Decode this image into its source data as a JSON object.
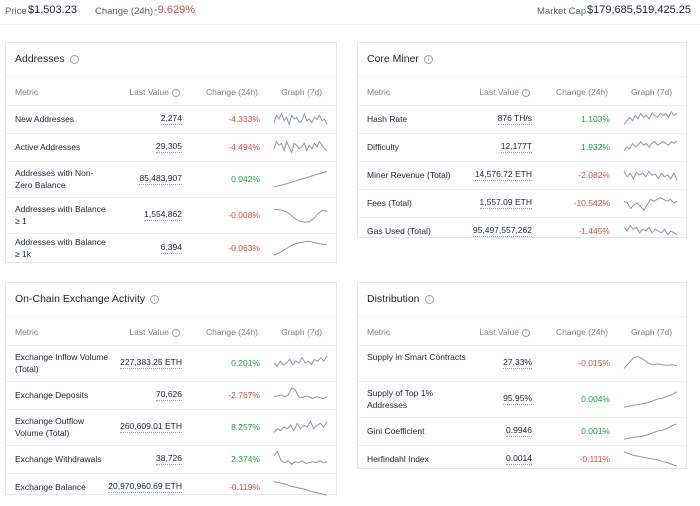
{
  "topbar": {
    "price_label": "Price",
    "price_value": "$1,503.23",
    "change_label": "Change (24h)",
    "change_value": "-9.629%",
    "mcap_label": "Market Cap",
    "mcap_value": "$179,685,519,425.25"
  },
  "columns": {
    "metric": "Metric",
    "last_value": "Last Value",
    "change": "Change (24h)",
    "graph": "Graph (7d)"
  },
  "icons": {
    "info": "info-icon"
  },
  "addresses": {
    "title": "Addresses",
    "rows": [
      {
        "metric": "New Addresses",
        "value": "2,274",
        "change": "-4.333%",
        "dir": "neg",
        "spark": [
          0.7,
          0.3,
          0.5,
          0.2,
          0.6,
          0.4,
          0.8,
          0.3,
          0.5,
          0.4,
          0.7,
          0.6,
          0.2,
          0.6,
          0.5,
          0.7,
          0.4,
          0.5,
          0.3,
          0.6,
          0.5,
          0.8
        ]
      },
      {
        "metric": "Active Addresses",
        "value": "29,305",
        "change": "-4.494%",
        "dir": "neg",
        "spark": [
          0.6,
          0.2,
          0.4,
          0.3,
          0.7,
          0.2,
          0.5,
          0.8,
          0.3,
          0.4,
          0.6,
          0.5,
          0.3,
          0.7,
          0.4,
          0.6,
          0.3,
          0.5,
          0.2,
          0.4,
          0.6,
          0.7
        ]
      },
      {
        "metric": "Addresses with Non-Zero Balance",
        "value": "85,483,907",
        "change": "0.042%",
        "dir": "pos",
        "spark": [
          0.95,
          0.88,
          0.82,
          0.75,
          0.68,
          0.6,
          0.52,
          0.45,
          0.38,
          0.3,
          0.22,
          0.15,
          0.08
        ]
      },
      {
        "metric": "Addresses with Balance ≥ 1",
        "value": "1,554,862",
        "change": "-0.008%",
        "dir": "neg",
        "spark": [
          0.2,
          0.2,
          0.25,
          0.35,
          0.55,
          0.75,
          0.85,
          0.9,
          0.88,
          0.7,
          0.4,
          0.25,
          0.3
        ]
      },
      {
        "metric": "Addresses with Balance ≥ 1k",
        "value": "6,394",
        "change": "-0.063%",
        "dir": "neg",
        "spark": [
          0.9,
          0.8,
          0.65,
          0.5,
          0.35,
          0.25,
          0.2,
          0.15,
          0.12,
          0.2,
          0.25,
          0.3,
          0.32
        ]
      }
    ]
  },
  "core_miner": {
    "title": "Core Miner",
    "rows": [
      {
        "metric": "Hash Rate",
        "value": "876 TH/s",
        "change": "1.103%",
        "dir": "pos",
        "spark": [
          0.8,
          0.6,
          0.4,
          0.6,
          0.3,
          0.5,
          0.2,
          0.4,
          0.3,
          0.5,
          0.2,
          0.3,
          0.4,
          0.2,
          0.3,
          0.2,
          0.4,
          0.1,
          0.3,
          0.2
        ]
      },
      {
        "metric": "Difficulty",
        "value": "12,177T",
        "change": "1.932%",
        "dir": "pos",
        "spark": [
          0.7,
          0.5,
          0.6,
          0.3,
          0.5,
          0.4,
          0.2,
          0.4,
          0.3,
          0.5,
          0.3,
          0.2,
          0.4,
          0.3,
          0.2,
          0.3,
          0.4,
          0.2,
          0.3,
          0.15
        ]
      },
      {
        "metric": "Miner Revenue (Total)",
        "value": "14,576.72 ETH",
        "change": "-2.082%",
        "dir": "neg",
        "spark": [
          0.3,
          0.6,
          0.4,
          0.7,
          0.35,
          0.5,
          0.4,
          0.6,
          0.3,
          0.5,
          0.45,
          0.7,
          0.4,
          0.6,
          0.5,
          0.7,
          0.4,
          0.8
        ]
      },
      {
        "metric": "Fees (Total)",
        "value": "1,557.09 ETH",
        "change": "-10.542%",
        "dir": "neg",
        "spark": [
          0.4,
          0.5,
          0.8,
          0.6,
          0.5,
          0.7,
          0.9,
          0.6,
          0.3,
          0.4,
          0.3,
          0.2,
          0.3,
          0.4,
          0.3,
          0.5,
          0.4
        ]
      },
      {
        "metric": "Gas Used (Total)",
        "value": "95,497,557,262",
        "change": "-1.445%",
        "dir": "neg",
        "spark": [
          0.3,
          0.5,
          0.2,
          0.4,
          0.3,
          0.6,
          0.4,
          0.5,
          0.3,
          0.6,
          0.4,
          0.5,
          0.6,
          0.4,
          0.7,
          0.5,
          0.6,
          0.7
        ]
      }
    ]
  },
  "onchain": {
    "title": "On-Chain Exchange Activity",
    "rows": [
      {
        "metric": "Exchange Inflow Volume (Total)",
        "value": "227,383.25 ETH",
        "change": "0.201%",
        "dir": "pos",
        "spark": [
          0.5,
          0.7,
          0.4,
          0.6,
          0.5,
          0.3,
          0.6,
          0.4,
          0.5,
          0.2,
          0.5,
          0.4,
          0.6,
          0.3,
          0.4,
          0.2,
          0.4,
          0.1
        ]
      },
      {
        "metric": "Exchange Deposits",
        "value": "70,626",
        "change": "-2.767%",
        "dir": "neg",
        "spark": [
          0.6,
          0.55,
          0.5,
          0.6,
          0.5,
          0.1,
          0.2,
          0.6,
          0.65,
          0.55,
          0.6,
          0.7,
          0.6,
          0.65,
          0.7,
          0.6
        ]
      },
      {
        "metric": "Exchange Outflow Volume (Total)",
        "value": "260,609.01 ETH",
        "change": "8.257%",
        "dir": "pos",
        "spark": [
          0.8,
          0.6,
          0.7,
          0.5,
          0.6,
          0.4,
          0.7,
          0.3,
          0.6,
          0.4,
          0.5,
          0.2,
          0.6,
          0.4,
          0.3,
          0.5,
          0.2
        ]
      },
      {
        "metric": "Exchange Withdrawals",
        "value": "38,726",
        "change": "2.374%",
        "dir": "pos",
        "spark": [
          0.3,
          0.1,
          0.6,
          0.7,
          0.6,
          0.8,
          0.65,
          0.7,
          0.6,
          0.75,
          0.7,
          0.65,
          0.7,
          0.6,
          0.7,
          0.65
        ]
      },
      {
        "metric": "Exchange Balance",
        "value": "20,970,960.69 ETH",
        "change": "-0.119%",
        "dir": "neg",
        "spark": [
          0.2,
          0.25,
          0.3,
          0.35,
          0.45,
          0.5,
          0.55,
          0.6,
          0.65,
          0.75,
          0.8,
          0.85,
          0.9,
          0.95
        ]
      }
    ]
  },
  "distribution": {
    "title": "Distribution",
    "rows": [
      {
        "metric": "Supply in Smart Contracts",
        "value": "27.33%",
        "change": "-0.015%",
        "dir": "neg",
        "spark": [
          0.8,
          0.5,
          0.2,
          0.15,
          0.3,
          0.5,
          0.6,
          0.55,
          0.6,
          0.62,
          0.6,
          0.65
        ]
      },
      {
        "metric": "Supply of Top 1% Addresses",
        "value": "95.95%",
        "change": "0.004%",
        "dir": "pos",
        "spark": [
          0.95,
          0.9,
          0.85,
          0.8,
          0.75,
          0.7,
          0.6,
          0.5,
          0.45,
          0.35,
          0.25,
          0.1
        ]
      },
      {
        "metric": "Gini Coefficient",
        "value": "0.9946",
        "change": "0.001%",
        "dir": "pos",
        "spark": [
          0.95,
          0.9,
          0.85,
          0.82,
          0.78,
          0.7,
          0.6,
          0.5,
          0.45,
          0.35,
          0.2,
          0.1
        ]
      },
      {
        "metric": "Herfindahl Index",
        "value": "0.0014",
        "change": "-0.111%",
        "dir": "neg",
        "spark": [
          0.1,
          0.2,
          0.3,
          0.35,
          0.4,
          0.45,
          0.5,
          0.55,
          0.65,
          0.7,
          0.8,
          0.9
        ]
      }
    ]
  }
}
